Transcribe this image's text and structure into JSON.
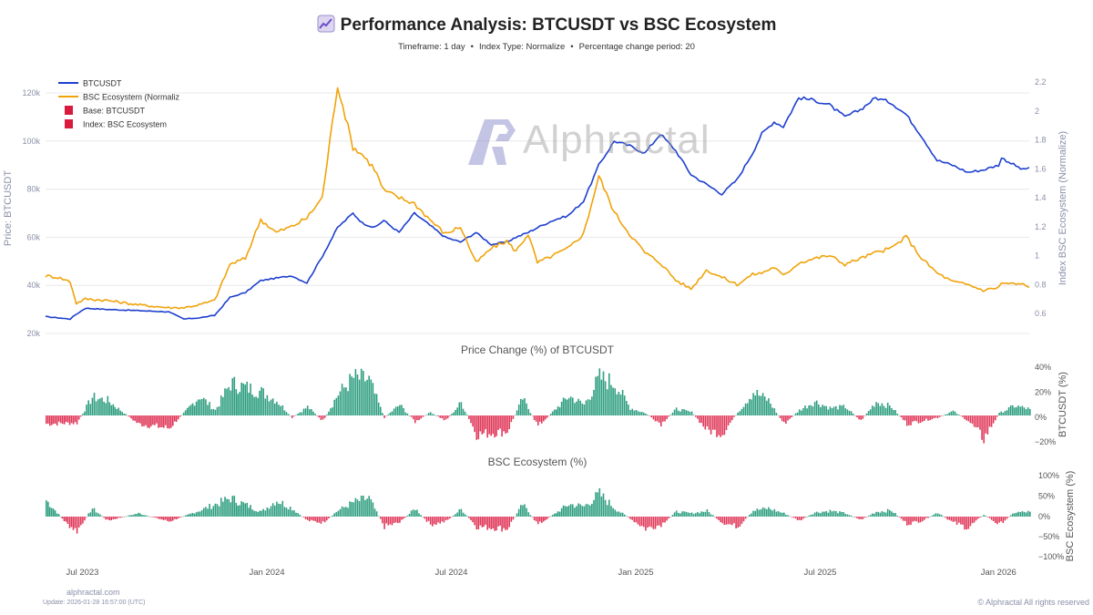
{
  "header": {
    "title": "Performance Analysis: BTCUSDT vs BSC Ecosystem",
    "subtitle_parts": [
      "Timeframe: 1 day",
      "Index Type: Normalize",
      "Percentage change period: 20"
    ]
  },
  "watermark": {
    "text": "Alphractal"
  },
  "footer": {
    "site": "alphractal.com",
    "update": "Update: 2026-01-28 16:57:00 (UTC)",
    "copyright": "© Alphractal All rights reserved"
  },
  "colors": {
    "btc": "#1d3fcf",
    "bsc": "#f0a30a",
    "positive": "#2e9e80",
    "negative": "#e0395a",
    "legend_base": "#d81b3c",
    "grid": "#e8e8e8",
    "axis_text": "#8a8fa8"
  },
  "chart_data": [
    {
      "type": "line",
      "title": "",
      "x_ticks": [
        "Jul 2023",
        "Jan 2024",
        "Jul 2024",
        "Jan 2025",
        "Jul 2025",
        "Jan 2026"
      ],
      "ylabel_left": "Price: BTCUSDT",
      "ylabel_right": "Index BSC Ecosystem (Normalize)",
      "yticks_left": [
        "20k",
        "40k",
        "60k",
        "80k",
        "100k",
        "120k"
      ],
      "yticks_right": [
        "0.6",
        "0.8",
        "1",
        "1.2",
        "1.4",
        "1.6",
        "1.8",
        "2",
        "2.2"
      ],
      "ylim_left": [
        20000,
        120000
      ],
      "ylim_right": [
        0.6,
        2.2
      ],
      "legend": [
        "BTCUSDT",
        "BSC Ecosystem (Normaliz",
        "Base: BTCUSDT",
        "Index: BSC Ecosystem"
      ],
      "x_months": [
        0,
        0.4,
        0.8,
        1.0,
        1.3,
        2.0,
        3.0,
        4.0,
        4.5,
        5.0,
        5.5,
        6.0,
        6.5,
        7.0,
        7.5,
        8.0,
        8.5,
        9.0,
        9.5,
        10.0,
        10.3,
        10.7,
        11.0,
        11.5,
        12.0,
        12.5,
        13.0,
        13.5,
        14.0,
        14.5,
        15.0,
        15.3,
        15.7,
        16.0,
        16.5,
        17.0,
        17.5,
        18.0,
        18.5,
        19.0,
        19.5,
        20.0,
        20.5,
        21.0,
        21.5,
        22.0,
        22.5,
        23.0,
        23.3,
        23.7,
        24.0,
        24.5,
        25.0,
        25.5,
        26.0,
        26.5,
        27.0,
        27.5,
        28.0,
        28.5,
        29.0,
        29.5,
        30.0,
        30.5,
        31.0,
        31.1,
        31.8,
        32.0
      ],
      "series": [
        {
          "name": "BTCUSDT",
          "color": "#1d3fcf",
          "axis": "left",
          "values": [
            27000,
            26500,
            26000,
            28000,
            30500,
            30000,
            29500,
            29000,
            26000,
            26500,
            27500,
            35000,
            37000,
            42000,
            43000,
            44000,
            41000,
            52000,
            64000,
            70000,
            66000,
            64000,
            67000,
            62000,
            70000,
            65000,
            60000,
            58000,
            62000,
            57000,
            58000,
            60000,
            62000,
            64000,
            67000,
            69000,
            75000,
            90000,
            100000,
            98000,
            95000,
            103000,
            96000,
            86000,
            82000,
            78000,
            84000,
            95000,
            103000,
            108000,
            106000,
            118000,
            117000,
            115000,
            110000,
            113000,
            118000,
            116000,
            111000,
            102000,
            92000,
            90000,
            87000,
            88000,
            90000,
            93000,
            88000,
            89000
          ]
        },
        {
          "name": "BSC Ecosystem (Normaliz",
          "color": "#f0a30a",
          "axis": "right",
          "values": [
            0.86,
            0.85,
            0.82,
            0.67,
            0.7,
            0.69,
            0.66,
            0.64,
            0.64,
            0.66,
            0.69,
            0.94,
            0.98,
            1.25,
            1.16,
            1.2,
            1.26,
            1.4,
            2.18,
            1.75,
            1.7,
            1.6,
            1.45,
            1.4,
            1.36,
            1.25,
            1.15,
            1.2,
            0.95,
            1.05,
            1.1,
            1.03,
            1.15,
            0.95,
            1.0,
            1.05,
            1.15,
            1.55,
            1.3,
            1.15,
            1.02,
            0.95,
            0.83,
            0.77,
            0.9,
            0.85,
            0.8,
            0.87,
            0.88,
            0.92,
            0.86,
            0.95,
            0.98,
            1.0,
            0.94,
            0.98,
            1.02,
            1.05,
            1.13,
            0.98,
            0.88,
            0.82,
            0.8,
            0.76,
            0.78,
            0.81,
            0.8,
            0.78
          ]
        }
      ]
    },
    {
      "type": "bar",
      "title": "Price Change (%) of BTCUSDT",
      "ylabel": "BTCUSDT (%)",
      "yticks": [
        "−20%",
        "0%",
        "20%",
        "40%"
      ],
      "ylim": [
        -25,
        45
      ],
      "x_months": [
        0,
        1,
        1.5,
        2,
        3,
        4,
        5,
        5.5,
        6,
        7,
        7.5,
        8,
        8.5,
        9,
        9.5,
        10,
        10.5,
        11,
        11.5,
        12,
        12.5,
        13,
        13.5,
        14,
        15,
        15.5,
        16,
        17,
        17.5,
        18,
        18.5,
        19,
        19.5,
        20,
        20.5,
        21,
        21.5,
        22,
        22.5,
        23,
        23.5,
        24,
        24.5,
        25,
        25.5,
        26,
        26.5,
        27,
        27.5,
        28,
        28.5,
        29,
        29.5,
        30,
        30.5,
        31,
        31.5,
        32
      ],
      "values": [
        -8,
        -7,
        17,
        14,
        -8,
        -12,
        18,
        5,
        30,
        22,
        14,
        -2,
        8,
        -5,
        20,
        35,
        33,
        -2,
        10,
        -6,
        3,
        -5,
        12,
        -18,
        -15,
        16,
        -10,
        18,
        10,
        35,
        30,
        7,
        2,
        -8,
        6,
        3,
        -14,
        -17,
        3,
        22,
        14,
        -8,
        5,
        13,
        7,
        8,
        -5,
        13,
        8,
        -8,
        -5,
        -2,
        4,
        -5,
        -22,
        2,
        9,
        6
      ]
    },
    {
      "type": "bar",
      "title": "BSC Ecosystem (%)",
      "ylabel": "BSC Ecosystem (%)",
      "yticks": [
        "−100%",
        "−50%",
        "0%",
        "50%",
        "100%"
      ],
      "ylim": [
        -100,
        100
      ],
      "x_months": [
        0,
        0.7,
        1,
        1.5,
        2,
        3,
        4,
        5,
        5.5,
        6,
        7,
        7.5,
        8,
        8.5,
        9,
        9.5,
        10,
        10.5,
        11,
        11.5,
        12,
        12.5,
        13,
        13.5,
        14,
        15,
        15.5,
        16,
        17,
        17.5,
        18,
        18.5,
        19,
        19.5,
        20,
        20.5,
        21,
        21.5,
        22,
        22.5,
        23,
        23.5,
        24,
        24.5,
        25,
        25.5,
        26,
        26.5,
        27,
        27.5,
        28,
        28.5,
        29,
        29.5,
        30,
        30.5,
        31,
        31.5,
        32
      ],
      "values": [
        40,
        -20,
        -35,
        20,
        -10,
        8,
        -12,
        15,
        30,
        45,
        12,
        40,
        20,
        -10,
        -15,
        15,
        35,
        45,
        -25,
        -15,
        20,
        -20,
        -12,
        18,
        -25,
        -30,
        30,
        -20,
        30,
        25,
        55,
        20,
        -5,
        -30,
        -20,
        12,
        8,
        14,
        -15,
        -25,
        15,
        20,
        8,
        -10,
        10,
        14,
        8,
        -8,
        12,
        15,
        -18,
        -10,
        10,
        -15,
        -28,
        5,
        -20,
        10,
        12
      ]
    }
  ]
}
